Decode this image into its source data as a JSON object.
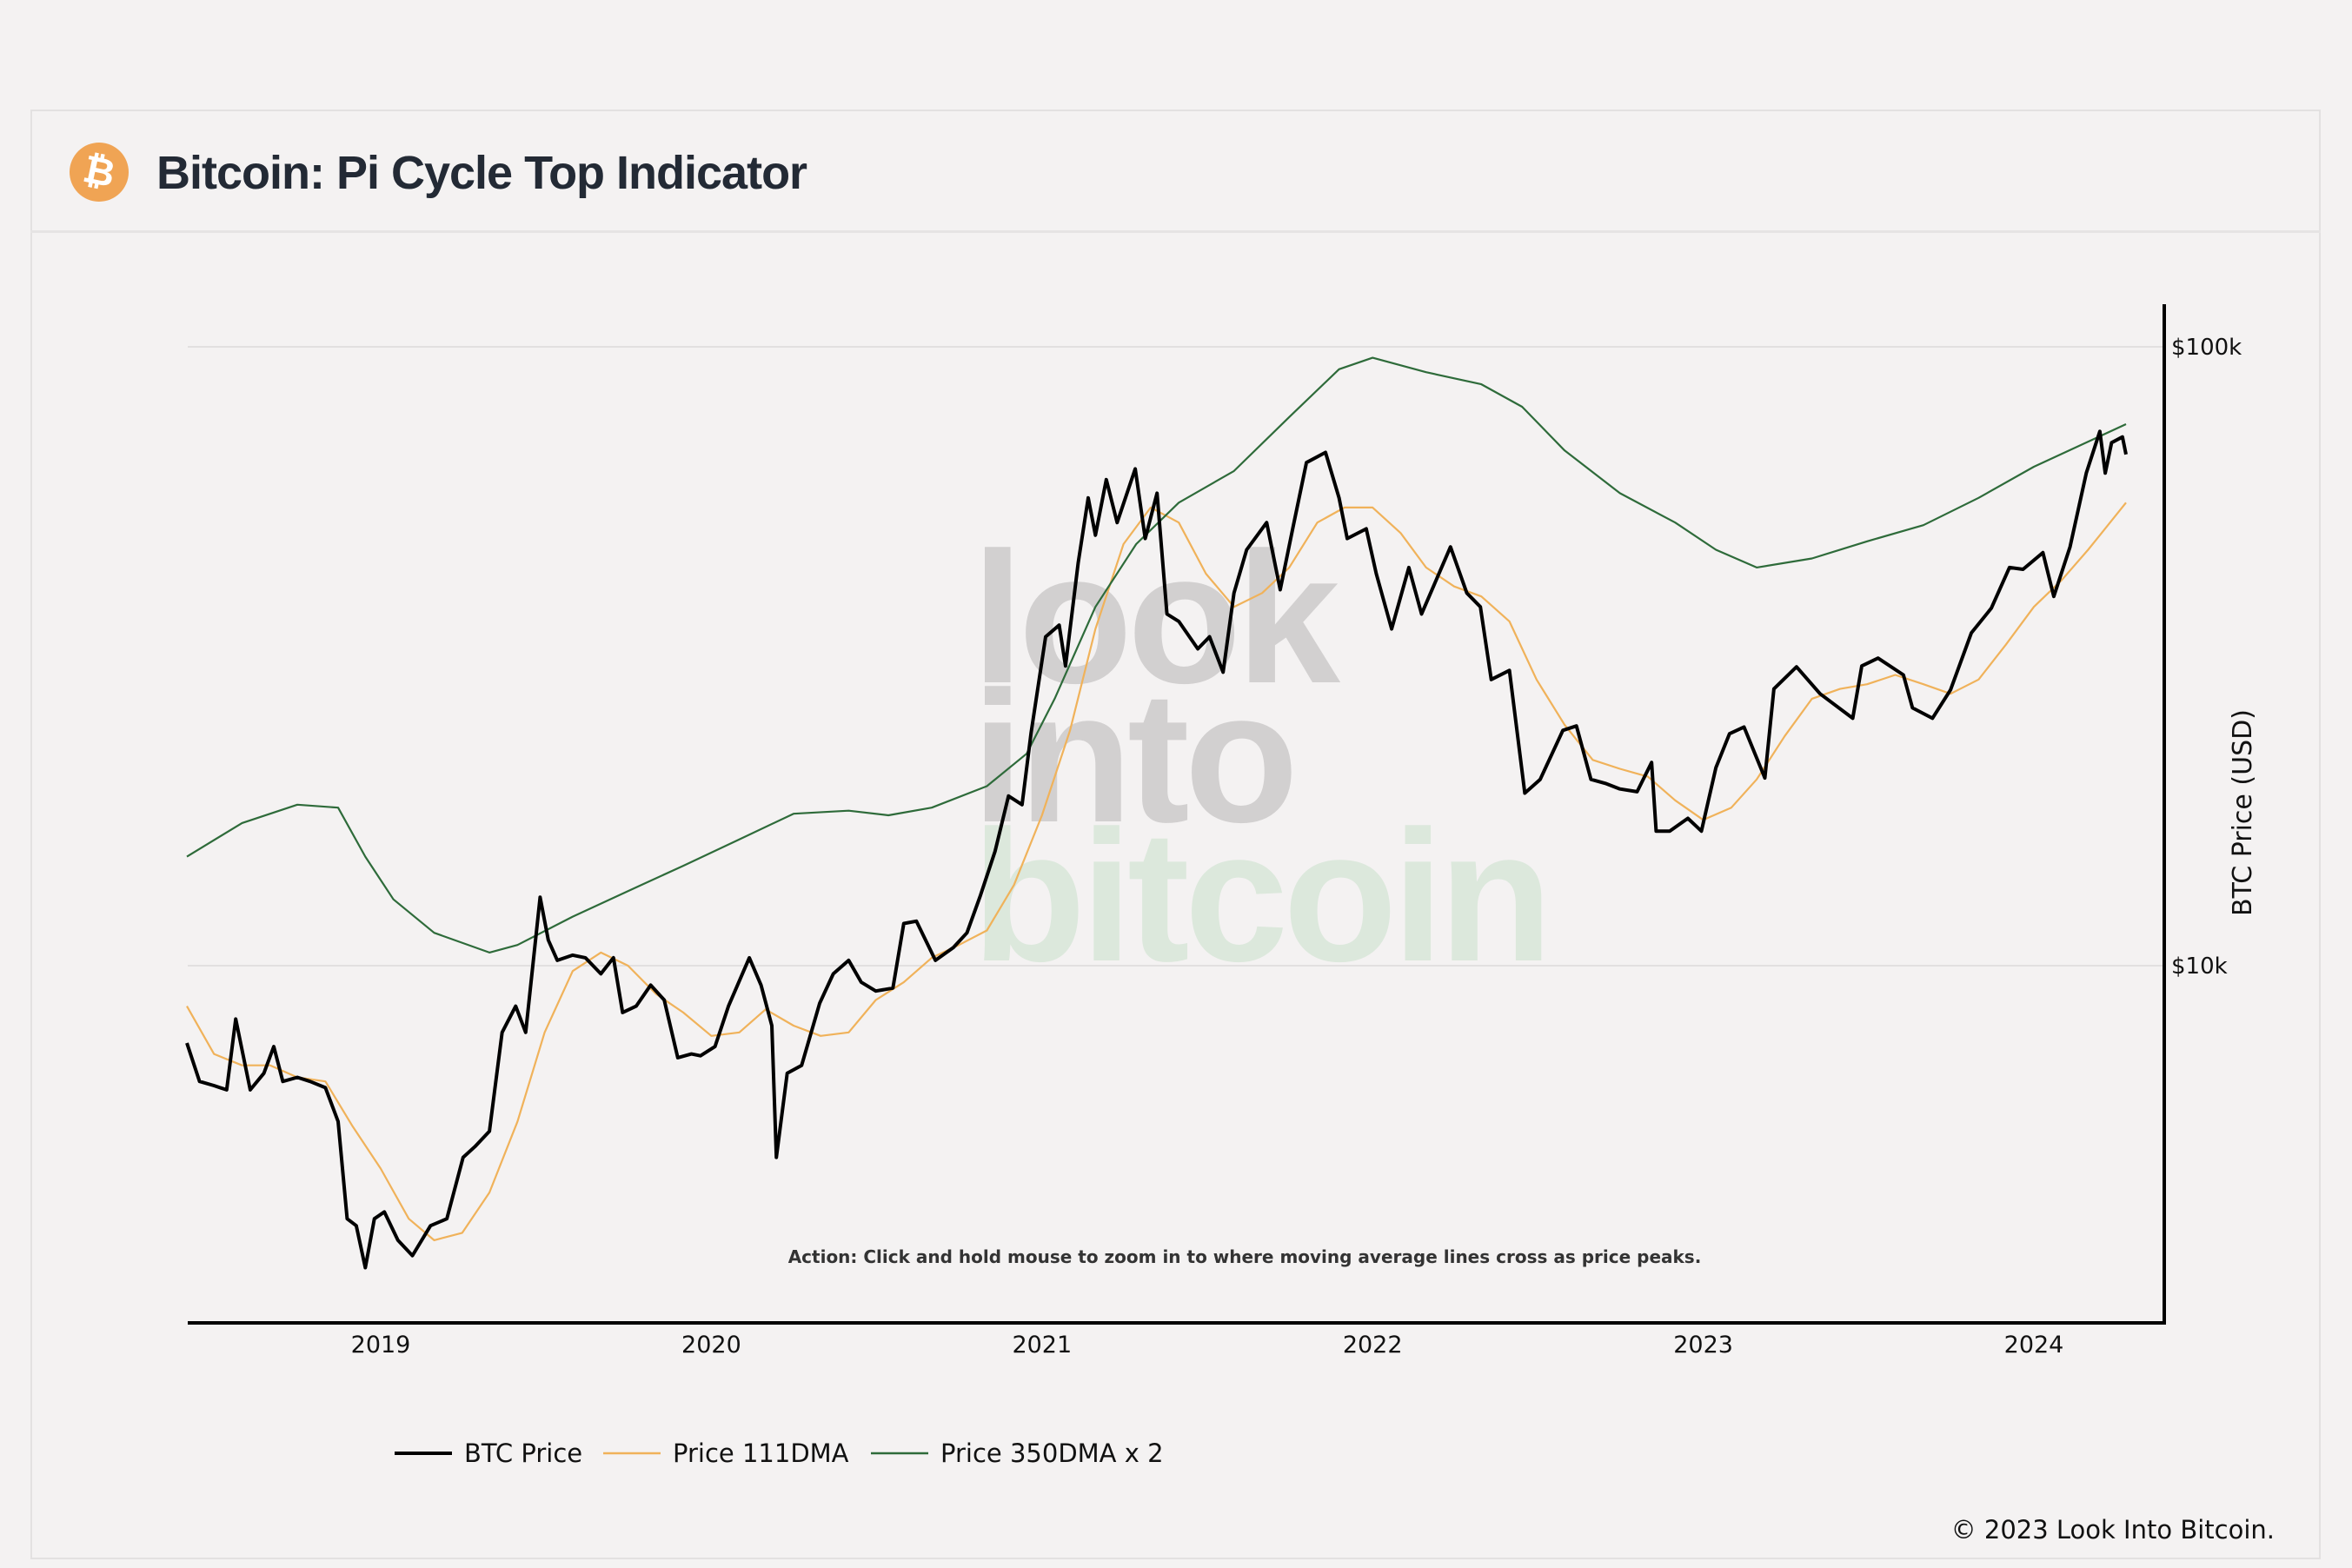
{
  "header": {
    "title": "Bitcoin: Pi Cycle Top Indicator",
    "icon": "bitcoin-icon",
    "icon_glyph": "₿"
  },
  "watermark": {
    "line1": "look",
    "line2": "into",
    "line3": "bitcoin"
  },
  "action_text": "Action: Click and hold mouse to zoom in to where moving average lines cross as price peaks.",
  "copyright": "© 2023 Look Into Bitcoin.",
  "chart_data": {
    "type": "line",
    "title": "Bitcoin: Pi Cycle Top Indicator",
    "xlabel": "",
    "ylabel": "BTC Price (USD)",
    "x_range": [
      "2018-06-01",
      "2024-04-12"
    ],
    "x_ticks": [
      "2019",
      "2020",
      "2021",
      "2022",
      "2023",
      "2024"
    ],
    "y_scale": "log",
    "y_range": [
      2630,
      117000
    ],
    "y_ticks": [
      {
        "value": 10000,
        "label": "$10k"
      },
      {
        "value": 100000,
        "label": "$100k"
      }
    ],
    "grid": "horizontal",
    "legend_position": "bottom-left",
    "colors": {
      "btc": "#000000",
      "dma111": "#f0b25a",
      "dma350x2": "#2e6b3a"
    },
    "series": [
      {
        "name": "BTC Price",
        "points": [
          [
            "2018-06-01",
            7500
          ],
          [
            "2018-06-15",
            6500
          ],
          [
            "2018-07-01",
            6400
          ],
          [
            "2018-07-15",
            6300
          ],
          [
            "2018-07-25",
            8200
          ],
          [
            "2018-08-10",
            6300
          ],
          [
            "2018-08-25",
            6700
          ],
          [
            "2018-09-05",
            7400
          ],
          [
            "2018-09-15",
            6500
          ],
          [
            "2018-10-01",
            6600
          ],
          [
            "2018-10-15",
            6500
          ],
          [
            "2018-11-01",
            6350
          ],
          [
            "2018-11-15",
            5600
          ],
          [
            "2018-11-25",
            3900
          ],
          [
            "2018-12-05",
            3800
          ],
          [
            "2018-12-15",
            3250
          ],
          [
            "2018-12-25",
            3900
          ],
          [
            "2019-01-05",
            4000
          ],
          [
            "2019-01-20",
            3600
          ],
          [
            "2019-02-05",
            3400
          ],
          [
            "2019-02-25",
            3800
          ],
          [
            "2019-03-15",
            3900
          ],
          [
            "2019-04-02",
            4900
          ],
          [
            "2019-04-15",
            5100
          ],
          [
            "2019-05-01",
            5400
          ],
          [
            "2019-05-15",
            7800
          ],
          [
            "2019-05-30",
            8600
          ],
          [
            "2019-06-10",
            7800
          ],
          [
            "2019-06-26",
            12900
          ],
          [
            "2019-07-05",
            11000
          ],
          [
            "2019-07-15",
            10200
          ],
          [
            "2019-08-01",
            10400
          ],
          [
            "2019-08-15",
            10300
          ],
          [
            "2019-09-01",
            9700
          ],
          [
            "2019-09-15",
            10300
          ],
          [
            "2019-09-25",
            8400
          ],
          [
            "2019-10-10",
            8600
          ],
          [
            "2019-10-26",
            9300
          ],
          [
            "2019-11-10",
            8800
          ],
          [
            "2019-11-25",
            7100
          ],
          [
            "2019-12-10",
            7200
          ],
          [
            "2019-12-20",
            7150
          ],
          [
            "2020-01-05",
            7400
          ],
          [
            "2020-01-20",
            8600
          ],
          [
            "2020-02-12",
            10300
          ],
          [
            "2020-02-25",
            9300
          ],
          [
            "2020-03-08",
            8000
          ],
          [
            "2020-03-13",
            4900
          ],
          [
            "2020-03-25",
            6700
          ],
          [
            "2020-04-10",
            6900
          ],
          [
            "2020-04-30",
            8700
          ],
          [
            "2020-05-15",
            9700
          ],
          [
            "2020-06-01",
            10200
          ],
          [
            "2020-06-15",
            9400
          ],
          [
            "2020-07-01",
            9100
          ],
          [
            "2020-07-20",
            9200
          ],
          [
            "2020-08-01",
            11700
          ],
          [
            "2020-08-15",
            11800
          ],
          [
            "2020-09-05",
            10200
          ],
          [
            "2020-09-25",
            10700
          ],
          [
            "2020-10-10",
            11300
          ],
          [
            "2020-10-25",
            13000
          ],
          [
            "2020-11-10",
            15300
          ],
          [
            "2020-11-25",
            18800
          ],
          [
            "2020-12-10",
            18200
          ],
          [
            "2020-12-20",
            23800
          ],
          [
            "2021-01-05",
            34000
          ],
          [
            "2021-01-20",
            35500
          ],
          [
            "2021-01-27",
            30500
          ],
          [
            "2021-02-10",
            44800
          ],
          [
            "2021-02-21",
            57000
          ],
          [
            "2021-03-01",
            49600
          ],
          [
            "2021-03-13",
            61000
          ],
          [
            "2021-03-25",
            52000
          ],
          [
            "2021-04-14",
            63500
          ],
          [
            "2021-04-25",
            49000
          ],
          [
            "2021-05-08",
            58000
          ],
          [
            "2021-05-19",
            37000
          ],
          [
            "2021-06-01",
            36000
          ],
          [
            "2021-06-22",
            32500
          ],
          [
            "2021-07-05",
            34000
          ],
          [
            "2021-07-20",
            29800
          ],
          [
            "2021-08-01",
            40000
          ],
          [
            "2021-08-15",
            47000
          ],
          [
            "2021-09-06",
            52000
          ],
          [
            "2021-09-21",
            40500
          ],
          [
            "2021-10-05",
            51000
          ],
          [
            "2021-10-20",
            65000
          ],
          [
            "2021-11-10",
            67500
          ],
          [
            "2021-11-25",
            57000
          ],
          [
            "2021-12-04",
            49000
          ],
          [
            "2021-12-25",
            50800
          ],
          [
            "2022-01-05",
            43000
          ],
          [
            "2022-01-22",
            35000
          ],
          [
            "2022-02-10",
            44000
          ],
          [
            "2022-02-24",
            37000
          ],
          [
            "2022-03-28",
            47500
          ],
          [
            "2022-04-15",
            40000
          ],
          [
            "2022-04-30",
            38000
          ],
          [
            "2022-05-12",
            29000
          ],
          [
            "2022-06-01",
            30000
          ],
          [
            "2022-06-18",
            19000
          ],
          [
            "2022-07-05",
            20000
          ],
          [
            "2022-07-30",
            24000
          ],
          [
            "2022-08-14",
            24400
          ],
          [
            "2022-08-30",
            20000
          ],
          [
            "2022-09-15",
            19700
          ],
          [
            "2022-10-01",
            19300
          ],
          [
            "2022-10-20",
            19100
          ],
          [
            "2022-11-05",
            21300
          ],
          [
            "2022-11-10",
            16500
          ],
          [
            "2022-11-25",
            16500
          ],
          [
            "2022-12-15",
            17300
          ],
          [
            "2022-12-30",
            16500
          ],
          [
            "2023-01-15",
            20900
          ],
          [
            "2023-01-30",
            23700
          ],
          [
            "2023-02-15",
            24300
          ],
          [
            "2023-03-10",
            20100
          ],
          [
            "2023-03-20",
            28000
          ],
          [
            "2023-04-14",
            30400
          ],
          [
            "2023-05-10",
            27500
          ],
          [
            "2023-06-15",
            25100
          ],
          [
            "2023-06-25",
            30500
          ],
          [
            "2023-07-13",
            31400
          ],
          [
            "2023-08-10",
            29500
          ],
          [
            "2023-08-20",
            26100
          ],
          [
            "2023-09-11",
            25100
          ],
          [
            "2023-10-01",
            27900
          ],
          [
            "2023-10-24",
            34500
          ],
          [
            "2023-11-15",
            37800
          ],
          [
            "2023-12-05",
            44000
          ],
          [
            "2023-12-20",
            43700
          ],
          [
            "2024-01-11",
            46500
          ],
          [
            "2024-01-23",
            39500
          ],
          [
            "2024-02-10",
            47500
          ],
          [
            "2024-02-28",
            62500
          ],
          [
            "2024-03-14",
            73000
          ],
          [
            "2024-03-20",
            62500
          ],
          [
            "2024-03-27",
            70000
          ],
          [
            "2024-04-08",
            71500
          ],
          [
            "2024-04-12",
            67000
          ]
        ]
      },
      {
        "name": "Price 111DMA",
        "points": [
          [
            "2018-06-01",
            8600
          ],
          [
            "2018-07-01",
            7200
          ],
          [
            "2018-08-01",
            6900
          ],
          [
            "2018-09-01",
            6900
          ],
          [
            "2018-10-01",
            6600
          ],
          [
            "2018-11-01",
            6500
          ],
          [
            "2018-12-01",
            5500
          ],
          [
            "2019-01-01",
            4700
          ],
          [
            "2019-02-01",
            3900
          ],
          [
            "2019-03-01",
            3600
          ],
          [
            "2019-04-01",
            3700
          ],
          [
            "2019-05-01",
            4300
          ],
          [
            "2019-06-01",
            5600
          ],
          [
            "2019-07-01",
            7800
          ],
          [
            "2019-08-01",
            9800
          ],
          [
            "2019-09-01",
            10500
          ],
          [
            "2019-10-01",
            10000
          ],
          [
            "2019-11-01",
            9000
          ],
          [
            "2019-12-01",
            8400
          ],
          [
            "2020-01-01",
            7700
          ],
          [
            "2020-02-01",
            7800
          ],
          [
            "2020-03-01",
            8500
          ],
          [
            "2020-04-01",
            8000
          ],
          [
            "2020-05-01",
            7700
          ],
          [
            "2020-06-01",
            7800
          ],
          [
            "2020-07-01",
            8800
          ],
          [
            "2020-08-01",
            9400
          ],
          [
            "2020-09-01",
            10300
          ],
          [
            "2020-10-01",
            10800
          ],
          [
            "2020-11-01",
            11400
          ],
          [
            "2020-12-01",
            13500
          ],
          [
            "2021-01-01",
            17500
          ],
          [
            "2021-02-01",
            24000
          ],
          [
            "2021-03-01",
            35000
          ],
          [
            "2021-04-01",
            48000
          ],
          [
            "2021-05-01",
            55000
          ],
          [
            "2021-06-01",
            52000
          ],
          [
            "2021-07-01",
            43000
          ],
          [
            "2021-08-01",
            38000
          ],
          [
            "2021-09-01",
            40000
          ],
          [
            "2021-10-01",
            44000
          ],
          [
            "2021-11-01",
            52000
          ],
          [
            "2021-12-01",
            55000
          ],
          [
            "2022-01-01",
            55000
          ],
          [
            "2022-02-01",
            50000
          ],
          [
            "2022-03-01",
            44000
          ],
          [
            "2022-04-01",
            41000
          ],
          [
            "2022-05-01",
            39500
          ],
          [
            "2022-06-01",
            36000
          ],
          [
            "2022-07-01",
            29000
          ],
          [
            "2022-08-01",
            24500
          ],
          [
            "2022-09-01",
            21500
          ],
          [
            "2022-10-01",
            20800
          ],
          [
            "2022-11-01",
            20200
          ],
          [
            "2022-12-01",
            18500
          ],
          [
            "2023-01-01",
            17200
          ],
          [
            "2023-02-01",
            18000
          ],
          [
            "2023-03-01",
            20000
          ],
          [
            "2023-04-01",
            23500
          ],
          [
            "2023-05-01",
            27000
          ],
          [
            "2023-06-01",
            28000
          ],
          [
            "2023-07-01",
            28500
          ],
          [
            "2023-08-01",
            29500
          ],
          [
            "2023-09-01",
            28500
          ],
          [
            "2023-10-01",
            27500
          ],
          [
            "2023-11-01",
            29000
          ],
          [
            "2023-12-01",
            33000
          ],
          [
            "2024-01-01",
            38000
          ],
          [
            "2024-02-01",
            42000
          ],
          [
            "2024-03-01",
            47000
          ],
          [
            "2024-04-12",
            56000
          ]
        ]
      },
      {
        "name": "Price 350DMA x 2",
        "points": [
          [
            "2018-06-01",
            15000
          ],
          [
            "2018-08-01",
            17000
          ],
          [
            "2018-10-01",
            18200
          ],
          [
            "2018-11-15",
            18000
          ],
          [
            "2018-12-15",
            15000
          ],
          [
            "2019-01-15",
            12800
          ],
          [
            "2019-03-01",
            11300
          ],
          [
            "2019-05-01",
            10500
          ],
          [
            "2019-06-01",
            10800
          ],
          [
            "2019-08-01",
            12000
          ],
          [
            "2019-10-01",
            13200
          ],
          [
            "2019-12-01",
            14500
          ],
          [
            "2020-02-01",
            16000
          ],
          [
            "2020-04-01",
            17600
          ],
          [
            "2020-06-01",
            17800
          ],
          [
            "2020-07-15",
            17500
          ],
          [
            "2020-09-01",
            18000
          ],
          [
            "2020-11-01",
            19500
          ],
          [
            "2020-12-15",
            22000
          ],
          [
            "2021-01-15",
            27000
          ],
          [
            "2021-03-01",
            38000
          ],
          [
            "2021-04-15",
            48000
          ],
          [
            "2021-06-01",
            56000
          ],
          [
            "2021-08-01",
            63000
          ],
          [
            "2021-10-01",
            77000
          ],
          [
            "2021-11-25",
            92000
          ],
          [
            "2022-01-01",
            96000
          ],
          [
            "2022-03-01",
            91000
          ],
          [
            "2022-05-01",
            87000
          ],
          [
            "2022-06-15",
            80000
          ],
          [
            "2022-08-01",
            68000
          ],
          [
            "2022-10-01",
            58000
          ],
          [
            "2022-12-01",
            52000
          ],
          [
            "2023-01-15",
            47000
          ],
          [
            "2023-03-01",
            44000
          ],
          [
            "2023-05-01",
            45500
          ],
          [
            "2023-07-01",
            48500
          ],
          [
            "2023-09-01",
            51500
          ],
          [
            "2023-11-01",
            57000
          ],
          [
            "2024-01-01",
            64000
          ],
          [
            "2024-04-12",
            75000
          ]
        ]
      }
    ]
  }
}
